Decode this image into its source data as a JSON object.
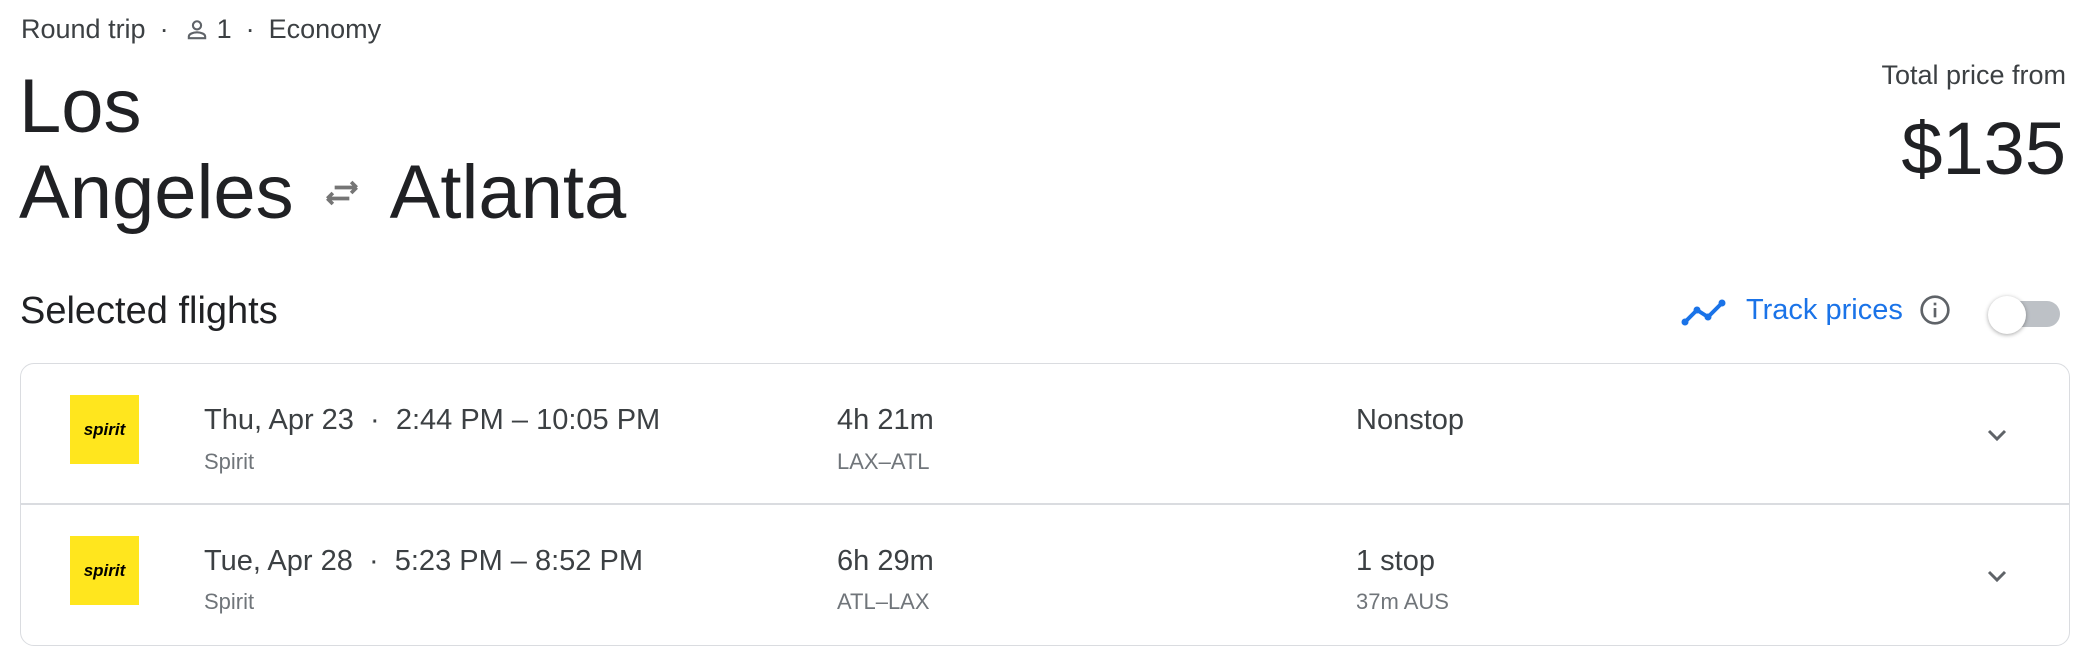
{
  "trip": {
    "type": "Round trip",
    "passengers": "1",
    "cabin": "Economy",
    "separator": "·"
  },
  "route": {
    "origin_line1": "Los",
    "origin_line2": "Angeles",
    "destination": "Atlanta"
  },
  "price": {
    "label": "Total price from",
    "value": "$135"
  },
  "section_title": "Selected flights",
  "track_prices": {
    "label": "Track prices",
    "enabled": false,
    "accent": "#1a73e8"
  },
  "flights": [
    {
      "airline": "Spirit",
      "logo_text": "spirit",
      "date": "Thu, Apr 23",
      "times": "2:44 PM – 10:05 PM",
      "duration": "4h 21m",
      "route": "LAX–ATL",
      "stops": "Nonstop",
      "stop_detail": ""
    },
    {
      "airline": "Spirit",
      "logo_text": "spirit",
      "date": "Tue, Apr 28",
      "times": "5:23 PM – 8:52 PM",
      "duration": "6h 29m",
      "route": "ATL–LAX",
      "stops": "1 stop",
      "stop_detail": "37m AUS"
    }
  ]
}
